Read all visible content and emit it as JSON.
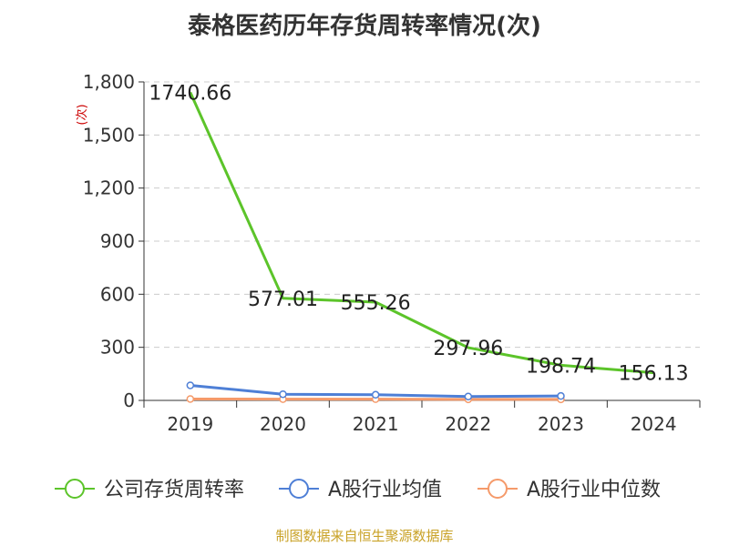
{
  "title": "泰格医药历年存货周转率情况(次)",
  "source": "制图数据来自恒生聚源数据库",
  "chart_data": {
    "type": "line",
    "title": "泰格医药历年存货周转率情况(次)",
    "ylabel": "(次)",
    "xlabel": "",
    "categories": [
      "2019",
      "2020",
      "2021",
      "2022",
      "2023",
      "2024"
    ],
    "ylim": [
      0,
      1800
    ],
    "yticks": [
      0,
      300,
      600,
      900,
      1200,
      1500,
      1800
    ],
    "ytick_labels": [
      "0",
      "300",
      "600",
      "900",
      "1,200",
      "1,500",
      "1,800"
    ],
    "grid": true,
    "legend_position": "bottom",
    "series": [
      {
        "name": "公司存货周转率",
        "color": "#5cc42a",
        "values": [
          1740.66,
          577.01,
          555.26,
          297.96,
          198.74,
          156.13
        ],
        "labels": [
          "1740.66",
          "577.01",
          "555.26",
          "297.96",
          "198.74",
          "156.13"
        ],
        "show_markers": false
      },
      {
        "name": "A股行业均值",
        "color": "#4e7fd6",
        "values": [
          85,
          35,
          32,
          22,
          25,
          null
        ],
        "show_markers": true
      },
      {
        "name": "A股行业中位数",
        "color": "#f59a6a",
        "values": [
          8,
          7,
          7,
          6,
          6,
          null
        ],
        "show_markers": true
      }
    ]
  }
}
